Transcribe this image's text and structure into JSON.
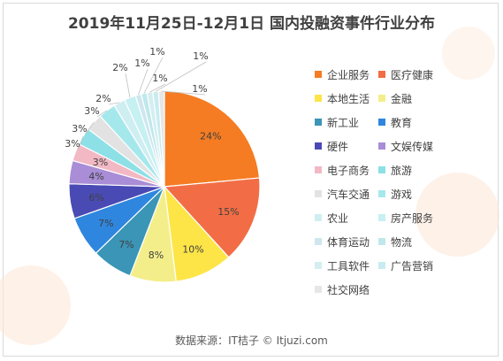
{
  "chart_data": {
    "type": "pie",
    "title": "2019年11月25日-12月1日 国内投融资事件行业分布",
    "categories": [
      "企业服务",
      "医疗健康",
      "本地生活",
      "金融",
      "新工业",
      "教育",
      "硬件",
      "文娱传媒",
      "电子商务",
      "旅游",
      "汽车交通",
      "游戏",
      "农业",
      "房产服务",
      "体育运动",
      "物流",
      "工具软件",
      "广告营销",
      "社交网络"
    ],
    "values": [
      24,
      15,
      10,
      8,
      7,
      7,
      6,
      4,
      3,
      3,
      3,
      3,
      2,
      2,
      1,
      1,
      1,
      1,
      1
    ],
    "data_labels": [
      "24%",
      "15%",
      "10%",
      "8%",
      "7%",
      "7%",
      "6%",
      "4%",
      "3%",
      "3%",
      "3%",
      "3%",
      "2%",
      "2%",
      "1%",
      "1%",
      "1%",
      "1%",
      "1%"
    ],
    "colors": [
      "#f57c22",
      "#f26d45",
      "#fde547",
      "#f4ee8a",
      "#3a95b6",
      "#2e86de",
      "#4a4ab5",
      "#a98dd6",
      "#f2b8c4",
      "#8ce0e6",
      "#e2e2e2",
      "#a5e8ec",
      "#cfeef2",
      "#c6f0f2",
      "#cfe6ee",
      "#bfe8ea",
      "#d4eef0",
      "#c8ecf0",
      "#e6e6e6"
    ],
    "legend_position": "right"
  },
  "footer": "数据来源：IT桔子 © Itjuzi.com"
}
